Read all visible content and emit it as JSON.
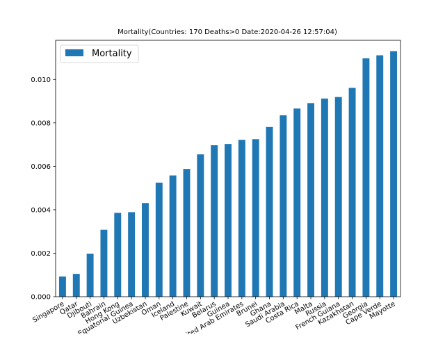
{
  "chart_data": {
    "type": "bar",
    "title": "Mortality(Countries: 170 Deaths>0 Date:2020-04-26 12:57:04)",
    "xlabel": "",
    "ylabel": "",
    "legend": {
      "position": "top-left",
      "entries": [
        "Mortality"
      ]
    },
    "grid": false,
    "ylim": [
      0,
      0.0118
    ],
    "yticks": [
      "0.000",
      "0.002",
      "0.004",
      "0.006",
      "0.008",
      "0.010"
    ],
    "categories": [
      "Singapore",
      "Qatar",
      "Djibouti",
      "Bahrain",
      "Hong Kong",
      "Equatorial Guinea",
      "Uzbekistan",
      "Oman",
      "Iceland",
      "Palestine",
      "Kuwait",
      "Belarus",
      "Guinea",
      "United Arab Emirates",
      "Brunei",
      "Ghana",
      "Saudi Arabia",
      "Costa Rica",
      "Malta",
      "Russia",
      "French Guiana",
      "Kazakhstan",
      "Georgia",
      "Cape Verde",
      "Mayotte"
    ],
    "series": [
      {
        "name": "Mortality",
        "color": "#1f77b4",
        "values": [
          0.00093,
          0.00105,
          0.00198,
          0.00308,
          0.00386,
          0.00389,
          0.00431,
          0.00525,
          0.00558,
          0.00588,
          0.00655,
          0.00697,
          0.00703,
          0.00722,
          0.00725,
          0.00781,
          0.00835,
          0.00866,
          0.00891,
          0.00912,
          0.00919,
          0.00961,
          0.01097,
          0.01111,
          0.0113
        ]
      }
    ]
  }
}
